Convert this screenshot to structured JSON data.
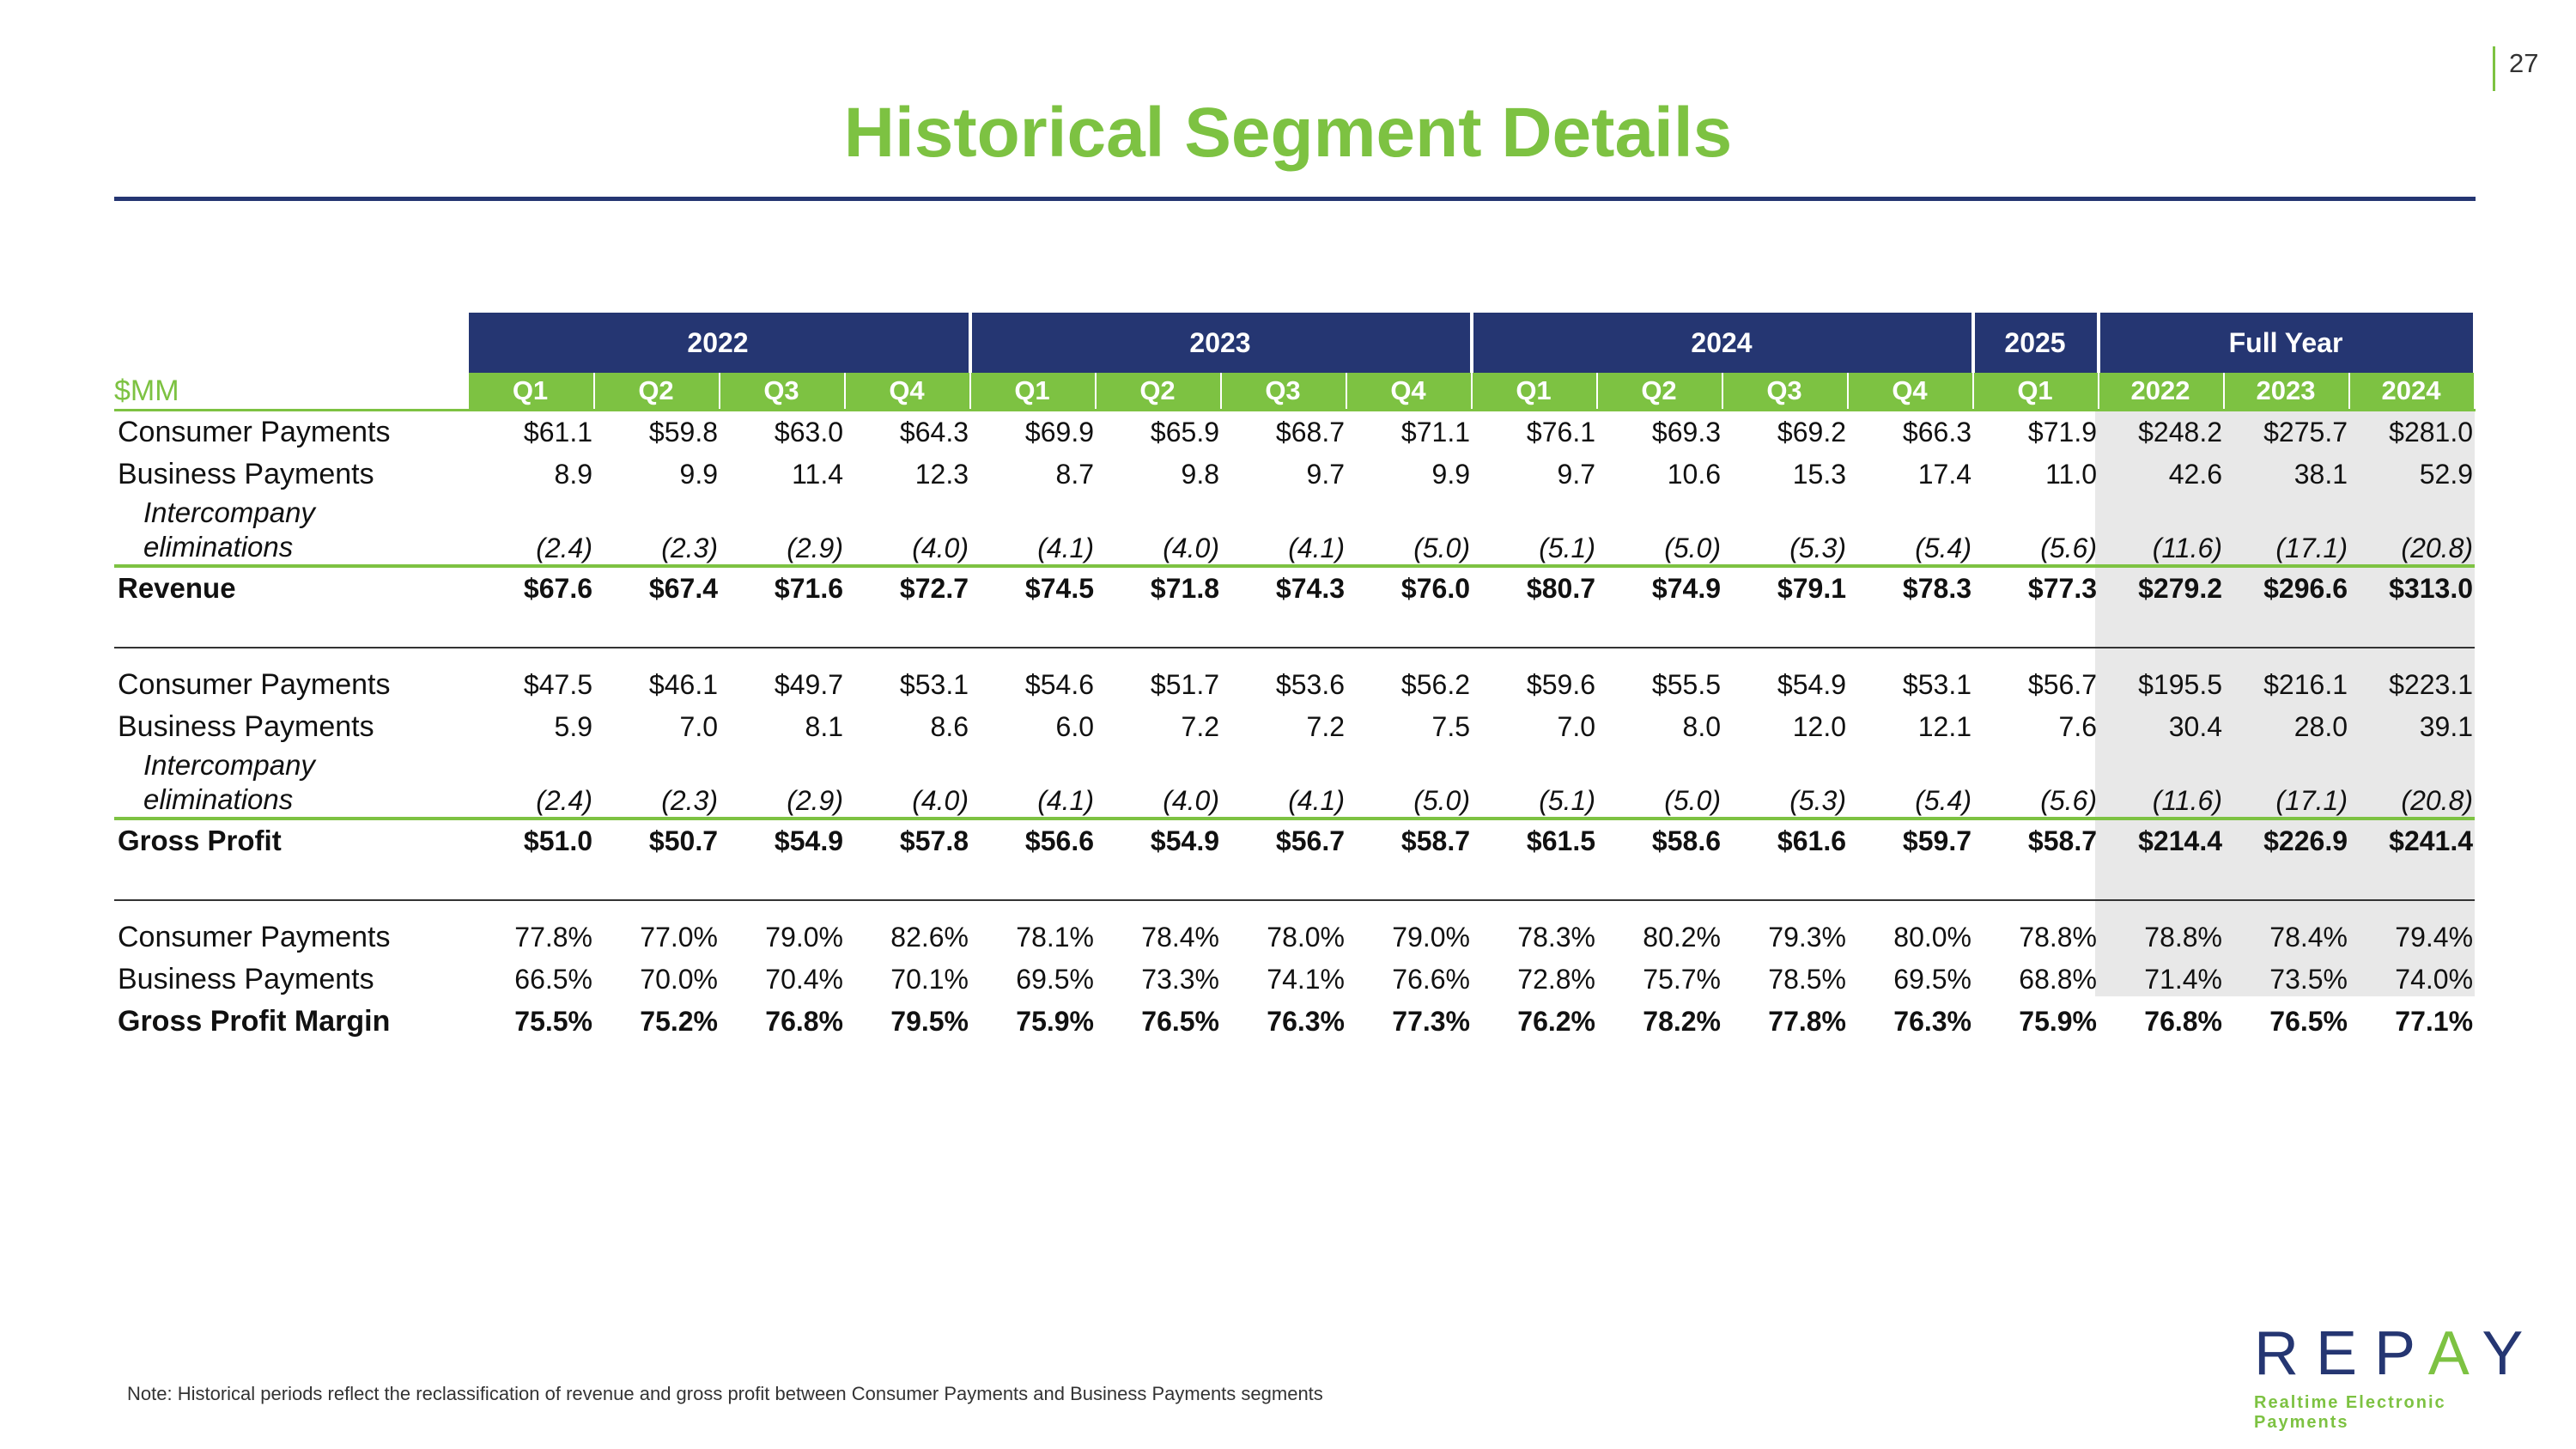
{
  "page_number": "27",
  "title": "Historical Segment Details",
  "units": "$MM",
  "year_headers": [
    "2022",
    "2023",
    "2024",
    "2025",
    "Full Year"
  ],
  "quarter_headers": [
    "Q1",
    "Q2",
    "Q3",
    "Q4",
    "Q1",
    "Q2",
    "Q3",
    "Q4",
    "Q1",
    "Q2",
    "Q3",
    "Q4",
    "Q1",
    "2022",
    "2023",
    "2024"
  ],
  "revenue": {
    "consumer": {
      "label": "Consumer Payments",
      "values": [
        "$61.1",
        "$59.8",
        "$63.0",
        "$64.3",
        "$69.9",
        "$65.9",
        "$68.7",
        "$71.1",
        "$76.1",
        "$69.3",
        "$69.2",
        "$66.3",
        "$71.9",
        "$248.2",
        "$275.7",
        "$281.0"
      ]
    },
    "business": {
      "label": "Business Payments",
      "values": [
        "8.9",
        "9.9",
        "11.4",
        "12.3",
        "8.7",
        "9.8",
        "9.7",
        "9.9",
        "9.7",
        "10.6",
        "15.3",
        "17.4",
        "11.0",
        "42.6",
        "38.1",
        "52.9"
      ]
    },
    "elim": {
      "label": "Intercompany eliminations",
      "values": [
        "(2.4)",
        "(2.3)",
        "(2.9)",
        "(4.0)",
        "(4.1)",
        "(4.0)",
        "(4.1)",
        "(5.0)",
        "(5.1)",
        "(5.0)",
        "(5.3)",
        "(5.4)",
        "(5.6)",
        "(11.6)",
        "(17.1)",
        "(20.8)"
      ]
    },
    "total": {
      "label": "Revenue",
      "values": [
        "$67.6",
        "$67.4",
        "$71.6",
        "$72.7",
        "$74.5",
        "$71.8",
        "$74.3",
        "$76.0",
        "$80.7",
        "$74.9",
        "$79.1",
        "$78.3",
        "$77.3",
        "$279.2",
        "$296.6",
        "$313.0"
      ]
    }
  },
  "gross_profit": {
    "consumer": {
      "label": "Consumer Payments",
      "values": [
        "$47.5",
        "$46.1",
        "$49.7",
        "$53.1",
        "$54.6",
        "$51.7",
        "$53.6",
        "$56.2",
        "$59.6",
        "$55.5",
        "$54.9",
        "$53.1",
        "$56.7",
        "$195.5",
        "$216.1",
        "$223.1"
      ]
    },
    "business": {
      "label": "Business Payments",
      "values": [
        "5.9",
        "7.0",
        "8.1",
        "8.6",
        "6.0",
        "7.2",
        "7.2",
        "7.5",
        "7.0",
        "8.0",
        "12.0",
        "12.1",
        "7.6",
        "30.4",
        "28.0",
        "39.1"
      ]
    },
    "elim": {
      "label": "Intercompany eliminations",
      "values": [
        "(2.4)",
        "(2.3)",
        "(2.9)",
        "(4.0)",
        "(4.1)",
        "(4.0)",
        "(4.1)",
        "(5.0)",
        "(5.1)",
        "(5.0)",
        "(5.3)",
        "(5.4)",
        "(5.6)",
        "(11.6)",
        "(17.1)",
        "(20.8)"
      ]
    },
    "total": {
      "label": "Gross Profit",
      "values": [
        "$51.0",
        "$50.7",
        "$54.9",
        "$57.8",
        "$56.6",
        "$54.9",
        "$56.7",
        "$58.7",
        "$61.5",
        "$58.6",
        "$61.6",
        "$59.7",
        "$58.7",
        "$214.4",
        "$226.9",
        "$241.4"
      ]
    }
  },
  "margin": {
    "consumer": {
      "label": "Consumer Payments",
      "values": [
        "77.8%",
        "77.0%",
        "79.0%",
        "82.6%",
        "78.1%",
        "78.4%",
        "78.0%",
        "79.0%",
        "78.3%",
        "80.2%",
        "79.3%",
        "80.0%",
        "78.8%",
        "78.8%",
        "78.4%",
        "79.4%"
      ]
    },
    "business": {
      "label": "Business Payments",
      "values": [
        "66.5%",
        "70.0%",
        "70.4%",
        "70.1%",
        "69.5%",
        "73.3%",
        "74.1%",
        "76.6%",
        "72.8%",
        "75.7%",
        "78.5%",
        "69.5%",
        "68.8%",
        "71.4%",
        "73.5%",
        "74.0%"
      ]
    },
    "total": {
      "label": "Gross Profit Margin",
      "values": [
        "75.5%",
        "75.2%",
        "76.8%",
        "79.5%",
        "75.9%",
        "76.5%",
        "76.3%",
        "77.3%",
        "76.2%",
        "78.2%",
        "77.8%",
        "76.3%",
        "75.9%",
        "76.8%",
        "76.5%",
        "77.1%"
      ]
    }
  },
  "note": "Note: Historical periods reflect the reclassification of revenue and gross profit between Consumer Payments and Business Payments segments",
  "logo": {
    "word_start": "REP",
    "word_accent": "A",
    "word_end": "Y",
    "tagline": "Realtime Electronic Payments"
  },
  "colors": {
    "navy": "#253672",
    "green": "#7dc242",
    "shade": "#e8e8e8"
  }
}
